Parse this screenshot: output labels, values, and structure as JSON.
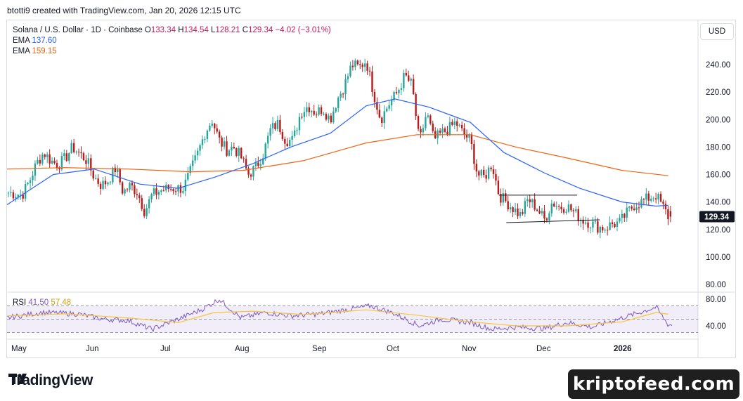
{
  "header": {
    "credit": "btotti9 created with TradingView.com, Jan 20, 2026 12:15 UTC"
  },
  "legend": {
    "symbol": "Solana / U.S. Dollar · 1D · Coinbase",
    "o_label": "O",
    "o": "133.34",
    "h_label": "H",
    "h": "134.54",
    "l_label": "L",
    "l": "128.21",
    "c_label": "C",
    "c": "129.34",
    "change": "−4.02 (−3.01%)",
    "ema1_label": "EMA",
    "ema1_value": "137.60",
    "ema2_label": "EMA",
    "ema2_value": "159.15"
  },
  "currency": "USD",
  "rsi_legend": {
    "label": "RSI",
    "value1": "41.50",
    "value2": "57.48"
  },
  "colors": {
    "up": "#26a69a",
    "down": "#b71c1c",
    "ema_fast": "#2962ff",
    "ema_slow": "#f2620f",
    "rsi": "#7e57c2",
    "rsi_ma": "#f5c53a"
  },
  "footer": {
    "brand": "TradingView",
    "watermark": "kriptofeed.com"
  },
  "chart_data": [
    {
      "type": "candlestick",
      "title": "Solana / U.S. Dollar · 1D · Coinbase",
      "ylim": [
        80,
        260
      ],
      "y_ticks": [
        "240.00",
        "220.00",
        "200.00",
        "180.00",
        "160.00",
        "140.00",
        "120.00",
        "100.00",
        "80.00"
      ],
      "x_ticks": [
        "May",
        "Jun",
        "Jul",
        "Aug",
        "Sep",
        "Oct",
        "Nov",
        "Dec",
        "2026"
      ],
      "last_price_label": "129.34",
      "close_path": [
        [
          "Apr 28",
          147
        ],
        [
          "May 2",
          145
        ],
        [
          "May 5",
          155
        ],
        [
          "May 8",
          168
        ],
        [
          "May 11",
          176
        ],
        [
          "May 14",
          170
        ],
        [
          "May 17",
          167
        ],
        [
          "May 20",
          172
        ],
        [
          "May 23",
          180
        ],
        [
          "May 26",
          175
        ],
        [
          "May 29",
          170
        ],
        [
          "Jun 1",
          158
        ],
        [
          "Jun 4",
          152
        ],
        [
          "Jun 7",
          156
        ],
        [
          "Jun 10",
          165
        ],
        [
          "Jun 13",
          147
        ],
        [
          "Jun 16",
          152
        ],
        [
          "Jun 19",
          147
        ],
        [
          "Jun 22",
          133
        ],
        [
          "Jun 25",
          145
        ],
        [
          "Jun 28",
          148
        ],
        [
          "Jul 1",
          150
        ],
        [
          "Jul 4",
          150
        ],
        [
          "Jul 7",
          150
        ],
        [
          "Jul 10",
          162
        ],
        [
          "Jul 13",
          175
        ],
        [
          "Jul 16",
          190
        ],
        [
          "Jul 19",
          200
        ],
        [
          "Jul 22",
          185
        ],
        [
          "Jul 25",
          178
        ],
        [
          "Jul 28",
          180
        ],
        [
          "Jul 31",
          173
        ],
        [
          "Aug 3",
          160
        ],
        [
          "Aug 6",
          165
        ],
        [
          "Aug 9",
          175
        ],
        [
          "Aug 12",
          193
        ],
        [
          "Aug 15",
          197
        ],
        [
          "Aug 18",
          185
        ],
        [
          "Aug 21",
          185
        ],
        [
          "Aug 24",
          205
        ],
        [
          "Aug 27",
          210
        ],
        [
          "Aug 30",
          205
        ],
        [
          "Sep 2",
          208
        ],
        [
          "Sep 5",
          200
        ],
        [
          "Sep 8",
          215
        ],
        [
          "Sep 11",
          225
        ],
        [
          "Sep 14",
          240
        ],
        [
          "Sep 17",
          238
        ],
        [
          "Sep 20",
          243
        ],
        [
          "Sep 23",
          220
        ],
        [
          "Sep 26",
          200
        ],
        [
          "Sep 29",
          210
        ],
        [
          "Oct 2",
          220
        ],
        [
          "Oct 5",
          232
        ],
        [
          "Oct 8",
          225
        ],
        [
          "Oct 11",
          183
        ],
        [
          "Oct 14",
          205
        ],
        [
          "Oct 17",
          185
        ],
        [
          "Oct 20",
          190
        ],
        [
          "Oct 23",
          193
        ],
        [
          "Oct 26",
          198
        ],
        [
          "Oct 29",
          190
        ],
        [
          "Nov 1",
          185
        ],
        [
          "Nov 4",
          160
        ],
        [
          "Nov 7",
          158
        ],
        [
          "Nov 10",
          168
        ],
        [
          "Nov 13",
          145
        ],
        [
          "Nov 16",
          140
        ],
        [
          "Nov 19",
          135
        ],
        [
          "Nov 22",
          130
        ],
        [
          "Nov 25",
          142
        ],
        [
          "Nov 28",
          137
        ],
        [
          "Dec 1",
          127
        ],
        [
          "Dec 4",
          140
        ],
        [
          "Dec 7",
          136
        ],
        [
          "Dec 10",
          137
        ],
        [
          "Dec 13",
          132
        ],
        [
          "Dec 16",
          127
        ],
        [
          "Dec 19",
          125
        ],
        [
          "Dec 22",
          122
        ],
        [
          "Dec 25",
          121
        ],
        [
          "Dec 28",
          124
        ],
        [
          "Dec 31",
          125
        ],
        [
          "Jan 3",
          132
        ],
        [
          "Jan 6",
          138
        ],
        [
          "Jan 9",
          140
        ],
        [
          "Jan 12",
          143
        ],
        [
          "Jan 15",
          145
        ],
        [
          "Jan 18",
          136
        ],
        [
          "Jan 20",
          129.34
        ]
      ],
      "series": [
        {
          "name": "EMA",
          "last": 137.6,
          "points": [
            [
              "Apr 28",
              138
            ],
            [
              "May 15",
              160
            ],
            [
              "Jun 1",
              164
            ],
            [
              "Jun 20",
              153
            ],
            [
              "Jul 5",
              150
            ],
            [
              "Jul 20",
              158
            ],
            [
              "Aug 5",
              168
            ],
            [
              "Aug 20",
              180
            ],
            [
              "Sep 5",
              190
            ],
            [
              "Sep 20",
              210
            ],
            [
              "Oct 1",
              215
            ],
            [
              "Oct 15",
              209
            ],
            [
              "Nov 1",
              198
            ],
            [
              "Nov 15",
              176
            ],
            [
              "Dec 1",
              161
            ],
            [
              "Dec 15",
              150
            ],
            [
              "Jan 1",
              140
            ],
            [
              "Jan 15",
              137
            ],
            [
              "Jan 20",
              137.6
            ]
          ]
        },
        {
          "name": "EMA",
          "last": 159.15,
          "points": [
            [
              "Apr 28",
              164
            ],
            [
              "May 20",
              165
            ],
            [
              "Jun 15",
              164
            ],
            [
              "Jul 10",
              162
            ],
            [
              "Aug 1",
              163
            ],
            [
              "Aug 25",
              170
            ],
            [
              "Sep 20",
              183
            ],
            [
              "Oct 10",
              189
            ],
            [
              "Nov 1",
              189
            ],
            [
              "Nov 20",
              180
            ],
            [
              "Dec 10",
              172
            ],
            [
              "Jan 1",
              163
            ],
            [
              "Jan 20",
              159.15
            ]
          ]
        }
      ],
      "annotations": [
        {
          "type": "trendline",
          "points": [
            [
              "Nov 13",
              145
            ],
            [
              "Dec 14",
              145
            ]
          ]
        },
        {
          "type": "trendline",
          "points": [
            [
              "Nov 16",
              125
            ],
            [
              "Dec 23",
              127
            ]
          ]
        }
      ]
    },
    {
      "type": "line",
      "title": "RSI",
      "ylim": [
        30,
        85
      ],
      "y_ticks": [
        "80.00",
        "40.00"
      ],
      "bands": [
        70,
        50,
        30
      ],
      "series": [
        {
          "name": "RSI",
          "last": 41.5,
          "points": [
            [
              "Apr 28",
              52
            ],
            [
              "May 10",
              60
            ],
            [
              "May 25",
              58
            ],
            [
              "Jun 5",
              50
            ],
            [
              "Jun 15",
              48
            ],
            [
              "Jun 25",
              35
            ],
            [
              "Jul 5",
              50
            ],
            [
              "Jul 15",
              65
            ],
            [
              "Jul 22",
              80
            ],
            [
              "Jul 31",
              52
            ],
            [
              "Aug 10",
              60
            ],
            [
              "Aug 20",
              55
            ],
            [
              "Sep 1",
              58
            ],
            [
              "Sep 15",
              66
            ],
            [
              "Sep 22",
              70
            ],
            [
              "Oct 1",
              58
            ],
            [
              "Oct 11",
              40
            ],
            [
              "Oct 20",
              50
            ],
            [
              "Nov 1",
              45
            ],
            [
              "Nov 10",
              35
            ],
            [
              "Nov 20",
              38
            ],
            [
              "Dec 1",
              36
            ],
            [
              "Dec 10",
              45
            ],
            [
              "Dec 20",
              38
            ],
            [
              "Jan 1",
              52
            ],
            [
              "Jan 10",
              62
            ],
            [
              "Jan 15",
              68
            ],
            [
              "Jan 20",
              41.5
            ]
          ]
        },
        {
          "name": "EMA",
          "last": 57.48,
          "points": [
            [
              "Apr 28",
              55
            ],
            [
              "May 20",
              58
            ],
            [
              "Jun 15",
              52
            ],
            [
              "Jul 5",
              45
            ],
            [
              "Jul 20",
              60
            ],
            [
              "Aug 5",
              62
            ],
            [
              "Aug 25",
              57
            ],
            [
              "Sep 20",
              64
            ],
            [
              "Oct 10",
              56
            ],
            [
              "Nov 1",
              46
            ],
            [
              "Nov 20",
              40
            ],
            [
              "Dec 10",
              40
            ],
            [
              "Jan 1",
              46
            ],
            [
              "Jan 15",
              60
            ],
            [
              "Jan 20",
              57.48
            ]
          ]
        }
      ]
    }
  ]
}
